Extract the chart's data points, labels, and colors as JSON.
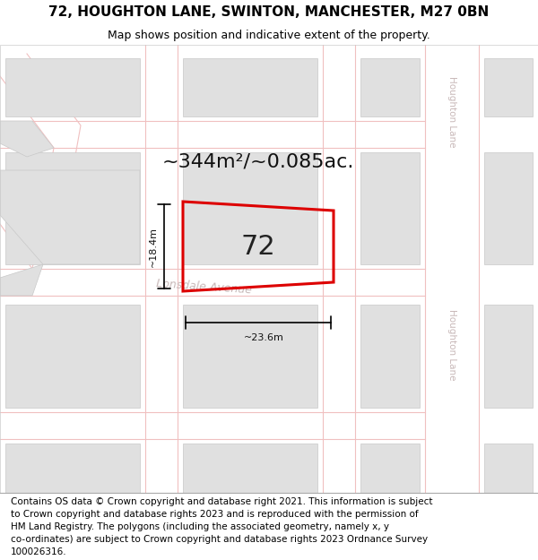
{
  "title_line1": "72, HOUGHTON LANE, SWINTON, MANCHESTER, M27 0BN",
  "title_line2": "Map shows position and indicative extent of the property.",
  "footer_lines": [
    "Contains OS data © Crown copyright and database right 2021. This information is subject",
    "to Crown copyright and database rights 2023 and is reproduced with the permission of",
    "HM Land Registry. The polygons (including the associated geometry, namely x, y",
    "co-ordinates) are subject to Crown copyright and database rights 2023 Ordnance Survey",
    "100026316."
  ],
  "area_label": "~344m²/~0.085ac.",
  "property_number": "72",
  "width_label": "~23.6m",
  "height_label": "~18.4m",
  "bg_color": "#ffffff",
  "map_bg": "#f5f5f5",
  "road_color": "#f0c0c0",
  "building_color": "#e0e0e0",
  "building_outline": "#c8c8c8",
  "property_outline": "#dd0000",
  "road_label_color": "#c8b8b8",
  "street_label1": "Houghton Lane",
  "street_label2": "Lonsdale Avenue",
  "title_fontsize": 11,
  "subtitle_fontsize": 9,
  "area_fontsize": 16,
  "footer_fontsize": 7.5
}
